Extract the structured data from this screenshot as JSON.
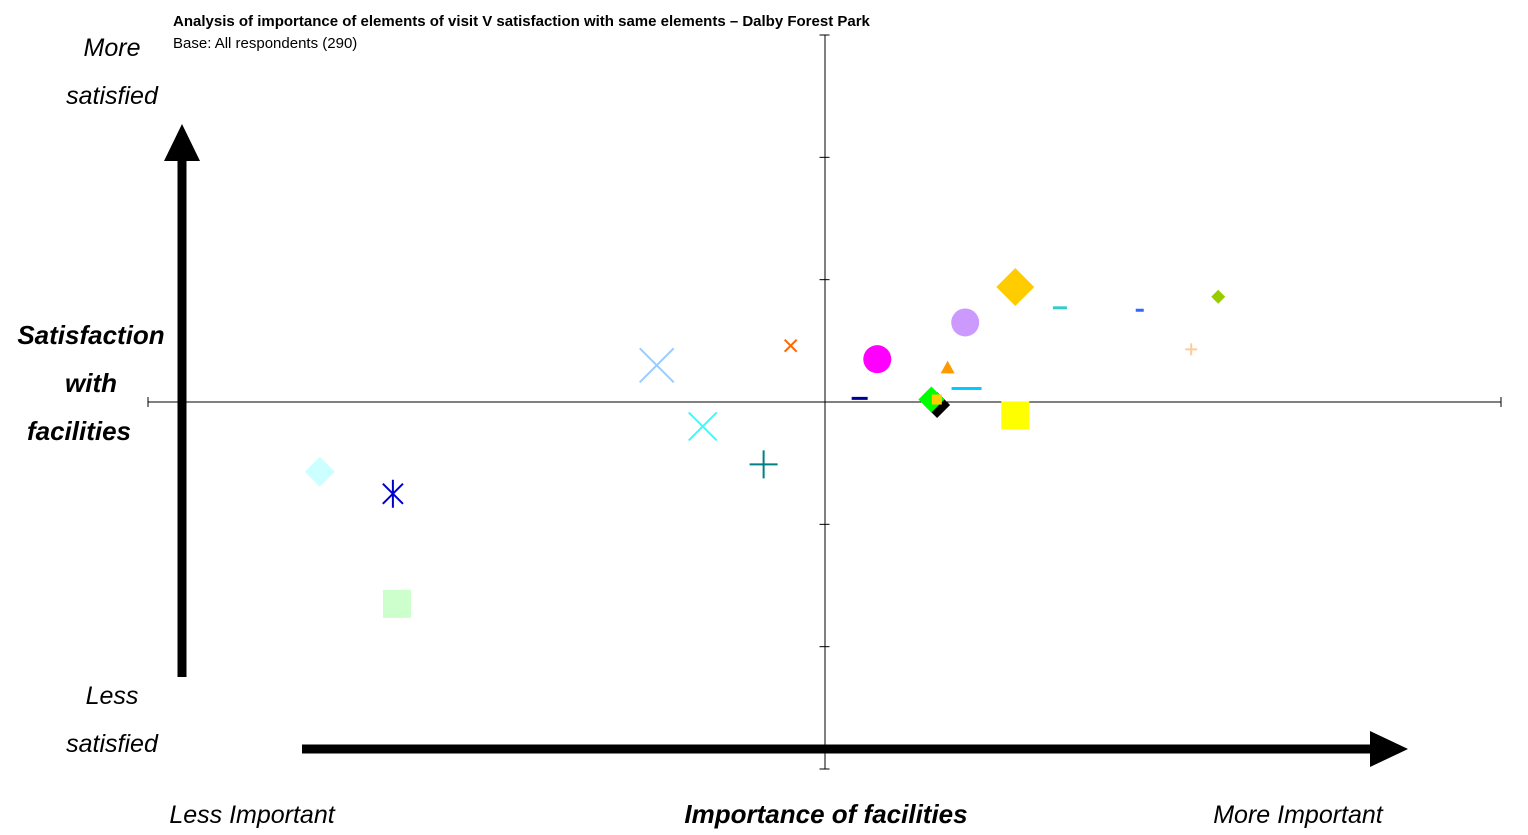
{
  "chart_data": {
    "type": "scatter",
    "title": "Analysis of importance of elements of visit V satisfaction with same elements – Dalby Forest Park",
    "subtitle": "Base: All respondents (290)",
    "xlabel": "Importance of facilities",
    "ylabel": [
      "Satisfaction",
      "with",
      "facilities"
    ],
    "x_low_label": "Less Important",
    "x_high_label": "More Important",
    "y_high_label": [
      "More",
      "satisfied"
    ],
    "y_low_label": [
      "Less",
      "satisfied"
    ],
    "xlim": [
      -5,
      5
    ],
    "ylim": [
      -3,
      3
    ],
    "grid": false,
    "legend": "none",
    "points": [
      {
        "x": -3.73,
        "y": -0.57,
        "marker": "diamond",
        "color": "#ccffff",
        "size": 15
      },
      {
        "x": -3.19,
        "y": -0.75,
        "marker": "asterisk",
        "color": "#0000cc",
        "size": 14
      },
      {
        "x": -3.16,
        "y": -1.65,
        "marker": "square",
        "color": "#ccffcc",
        "size": 14
      },
      {
        "x": -1.24,
        "y": 0.3,
        "marker": "x",
        "color": "#99ccff",
        "size": 17
      },
      {
        "x": -0.9,
        "y": -0.2,
        "marker": "x",
        "color": "#33ffff",
        "size": 14
      },
      {
        "x": -0.45,
        "y": -0.51,
        "marker": "plus",
        "color": "#008080",
        "size": 14
      },
      {
        "x": -0.25,
        "y": 0.46,
        "marker": "x",
        "color": "#ff6600",
        "size": 6
      },
      {
        "x": 0.26,
        "y": 0.03,
        "marker": "dash",
        "color": "#000099",
        "size": 8
      },
      {
        "x": 0.39,
        "y": 0.35,
        "marker": "circle",
        "color": "#ff00ff",
        "size": 14
      },
      {
        "x": 0.81,
        "y": 0.0,
        "marker": "diamond",
        "color": "#000000",
        "size": 13,
        "offset": [
          3,
          3
        ]
      },
      {
        "x": 0.79,
        "y": 0.02,
        "marker": "diamond",
        "color": "#00ff00",
        "size": 13
      },
      {
        "x": 0.83,
        "y": 0.02,
        "marker": "square",
        "color": "#ffcc00",
        "size": 5
      },
      {
        "x": 0.91,
        "y": 0.28,
        "marker": "triangle",
        "color": "#ff9900",
        "size": 7
      },
      {
        "x": 1.05,
        "y": 0.11,
        "marker": "dash",
        "color": "#00ccff",
        "size": 15
      },
      {
        "x": 1.04,
        "y": 0.65,
        "marker": "circle",
        "color": "#cc99ff",
        "size": 14
      },
      {
        "x": 1.41,
        "y": -0.11,
        "marker": "square",
        "color": "#ffff00",
        "size": 14
      },
      {
        "x": 1.41,
        "y": 0.94,
        "marker": "diamond",
        "color": "#ffcc00",
        "size": 19
      },
      {
        "x": 1.74,
        "y": 0.77,
        "marker": "dash",
        "color": "#33cccc",
        "size": 7
      },
      {
        "x": 2.33,
        "y": 0.75,
        "marker": "dash",
        "color": "#3366ff",
        "size": 4
      },
      {
        "x": 2.71,
        "y": 0.43,
        "marker": "plus",
        "color": "#ffcc99",
        "size": 6
      },
      {
        "x": 2.91,
        "y": 0.86,
        "marker": "diamond",
        "color": "#99cc00",
        "size": 7
      }
    ]
  }
}
